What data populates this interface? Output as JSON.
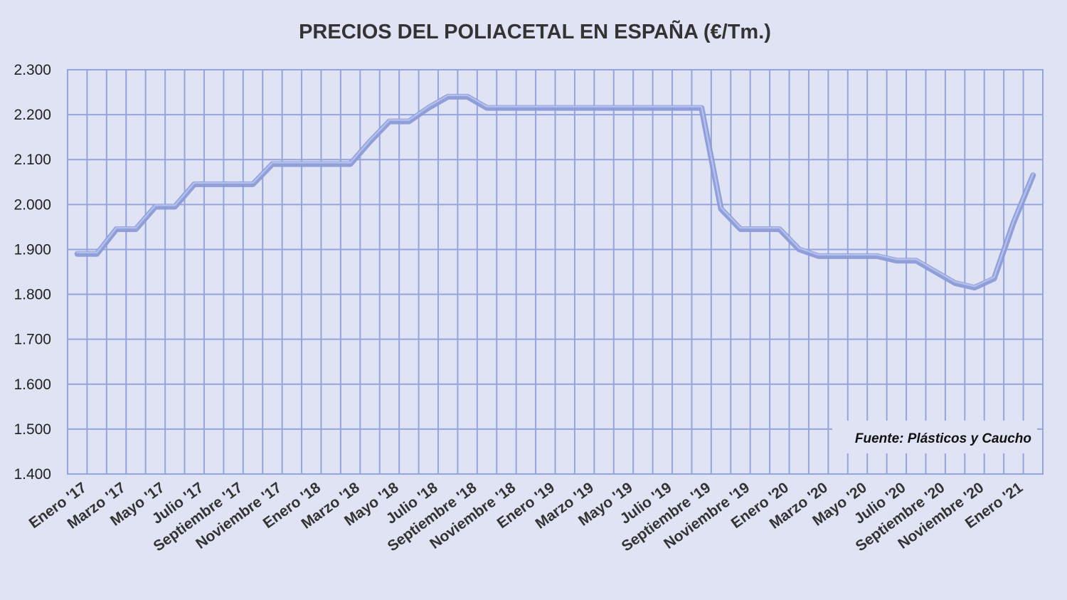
{
  "chart_data": {
    "type": "line",
    "title": "PRECIOS DEL POLIACETAL  EN ESPAÑA (€/Tm.)",
    "xlabel": "",
    "ylabel": "",
    "ylim": [
      1400,
      2300
    ],
    "y_ticks": [
      1400,
      1500,
      1600,
      1700,
      1800,
      1900,
      2000,
      2100,
      2200,
      2300
    ],
    "y_tick_labels": [
      "1.400",
      "1.500",
      "1.600",
      "1.700",
      "1.800",
      "1.900",
      "2.000",
      "2.100",
      "2.200",
      "2.300"
    ],
    "x_tick_labels": [
      "Enero '17",
      "Marzo '17",
      "Mayo '17",
      "Julio '17",
      "Septiembre '17",
      "Noviembre '17",
      "Enero '18",
      "Marzo '18",
      "Mayo '18",
      "Julio '18",
      "Septiembre '18",
      "Noviembre '18",
      "Enero '19",
      "Marzo '19",
      "Mayo '19",
      "Julio '19",
      "Septiembre '19",
      "Noviembre '19",
      "Enero '20",
      "Marzo '20",
      "Mayo '20",
      "Julio '20",
      "Septiembre '20",
      "Noviembre '20",
      "Enero '21"
    ],
    "categories": [
      "Ene 17",
      "Feb 17",
      "Mar 17",
      "Abr 17",
      "May 17",
      "Jun 17",
      "Jul 17",
      "Ago 17",
      "Sep 17",
      "Oct 17",
      "Nov 17",
      "Dic 17",
      "Ene 18",
      "Feb 18",
      "Mar 18",
      "Abr 18",
      "May 18",
      "Jun 18",
      "Jul 18",
      "Ago 18",
      "Sep 18",
      "Oct 18",
      "Nov 18",
      "Dic 18",
      "Ene 19",
      "Feb 19",
      "Mar 19",
      "Abr 19",
      "May 19",
      "Jun 19",
      "Jul 19",
      "Ago 19",
      "Sep 19",
      "Oct 19",
      "Nov 19",
      "Dic 19",
      "Ene 20",
      "Feb 20",
      "Mar 20",
      "Abr 20",
      "May 20",
      "Jun 20",
      "Jul 20",
      "Ago 20",
      "Sep 20",
      "Oct 20",
      "Nov 20",
      "Dic 20",
      "Ene 21",
      "Feb 21"
    ],
    "series": [
      {
        "values": [
          1890,
          1890,
          1945,
          1945,
          1995,
          1995,
          2045,
          2045,
          2045,
          2045,
          2090,
          2090,
          2090,
          2090,
          2090,
          2140,
          2185,
          2185,
          2215,
          2240,
          2240,
          2215,
          2215,
          2215,
          2215,
          2215,
          2215,
          2215,
          2215,
          2215,
          2215,
          2215,
          2215,
          1990,
          1945,
          1945,
          1945,
          1900,
          1885,
          1885,
          1885,
          1885,
          1875,
          1875,
          1850,
          1825,
          1815,
          1835,
          1960,
          2065
        ]
      }
    ],
    "grid": true,
    "legend": "none",
    "line_color": "#8b9bd8",
    "grid_color": "#94a5dd",
    "background_color": "#dfe3f3",
    "annotation": "Fuente: Plásticos y Caucho"
  }
}
